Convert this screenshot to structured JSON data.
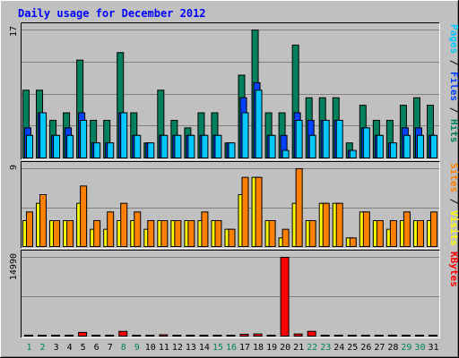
{
  "chart_data": {
    "type": "bar",
    "title": "Daily usage for December 2012",
    "categories": [
      "1",
      "2",
      "3",
      "4",
      "5",
      "6",
      "7",
      "8",
      "9",
      "10",
      "11",
      "12",
      "13",
      "14",
      "15",
      "16",
      "17",
      "18",
      "19",
      "20",
      "21",
      "22",
      "23",
      "24",
      "25",
      "26",
      "27",
      "28",
      "29",
      "30",
      "31"
    ],
    "weekend_days": [
      "1",
      "2",
      "8",
      "9",
      "15",
      "16",
      "22",
      "23",
      "29",
      "30"
    ],
    "colors": {
      "background": "#c0c0c0",
      "title": "#0000ff",
      "hits": "#00805c",
      "files": "#0040ff",
      "pages": "#00c8ff",
      "visits": "#ffff00",
      "sites": "#ff8000",
      "kbytes": "#ff0000",
      "weekday_label": "#000000",
      "weekend_label": "#00805c",
      "gridline": "#808080"
    },
    "panels": [
      {
        "id": "hits",
        "max_label": "17",
        "ylim": [
          0,
          17
        ],
        "axis_label_parts": [
          {
            "text": "Pages",
            "color": "#00c8ff"
          },
          {
            "text": " / ",
            "color": "#000000"
          },
          {
            "text": "Files",
            "color": "#0040ff"
          },
          {
            "text": " / ",
            "color": "#000000"
          },
          {
            "text": "Hits",
            "color": "#00805c"
          }
        ],
        "series": [
          {
            "name": "Hits",
            "color": "#00805c",
            "values": [
              9,
              9,
              5,
              6,
              13,
              5,
              5,
              14,
              6,
              2,
              9,
              5,
              4,
              6,
              6,
              2,
              11,
              17,
              6,
              6,
              15,
              8,
              8,
              8,
              2,
              7,
              5,
              5,
              7,
              8,
              7
            ]
          },
          {
            "name": "Files",
            "color": "#0040ff",
            "values": [
              4,
              6,
              3,
              4,
              6,
              2,
              2,
              6,
              3,
              2,
              3,
              3,
              3,
              3,
              3,
              2,
              8,
              10,
              3,
              3,
              6,
              5,
              5,
              5,
              1,
              4,
              3,
              2,
              4,
              4,
              3
            ]
          },
          {
            "name": "Pages",
            "color": "#00c8ff",
            "values": [
              3,
              6,
              3,
              3,
              5,
              2,
              2,
              6,
              3,
              2,
              3,
              3,
              3,
              3,
              3,
              2,
              6,
              9,
              3,
              1,
              5,
              3,
              5,
              5,
              1,
              4,
              3,
              2,
              3,
              3,
              3
            ]
          }
        ]
      },
      {
        "id": "visits",
        "max_label": "9",
        "ylim": [
          0,
          9
        ],
        "axis_label_parts": [
          {
            "text": "Sites",
            "color": "#ff8000"
          },
          {
            "text": " / ",
            "color": "#000000"
          },
          {
            "text": "Visits",
            "color": "#ffff00"
          }
        ],
        "series": [
          {
            "name": "Visits",
            "color": "#ffff00",
            "values": [
              3,
              5,
              3,
              3,
              5,
              2,
              2,
              3,
              3,
              2,
              3,
              3,
              3,
              3,
              3,
              2,
              6,
              8,
              3,
              1,
              5,
              3,
              5,
              5,
              1,
              4,
              3,
              2,
              3,
              3,
              3
            ]
          },
          {
            "name": "Sites",
            "color": "#ff8000",
            "values": [
              4,
              6,
              3,
              3,
              7,
              3,
              4,
              5,
              4,
              3,
              3,
              3,
              3,
              4,
              3,
              2,
              8,
              8,
              3,
              2,
              9,
              3,
              5,
              5,
              1,
              4,
              3,
              3,
              4,
              3,
              4
            ]
          }
        ]
      },
      {
        "id": "kbytes",
        "max_label": "14990",
        "ylim": [
          0,
          14990
        ],
        "axis_label_parts": [
          {
            "text": "KBytes",
            "color": "#ff0000"
          }
        ],
        "series": [
          {
            "name": "KBytes",
            "color": "#ff0000",
            "values": [
              120,
              120,
              120,
              120,
              700,
              120,
              120,
              900,
              120,
              120,
              250,
              120,
              120,
              120,
              120,
              120,
              350,
              400,
              120,
              14990,
              400,
              900,
              120,
              120,
              120,
              120,
              120,
              120,
              120,
              120,
              120
            ]
          }
        ]
      }
    ]
  }
}
